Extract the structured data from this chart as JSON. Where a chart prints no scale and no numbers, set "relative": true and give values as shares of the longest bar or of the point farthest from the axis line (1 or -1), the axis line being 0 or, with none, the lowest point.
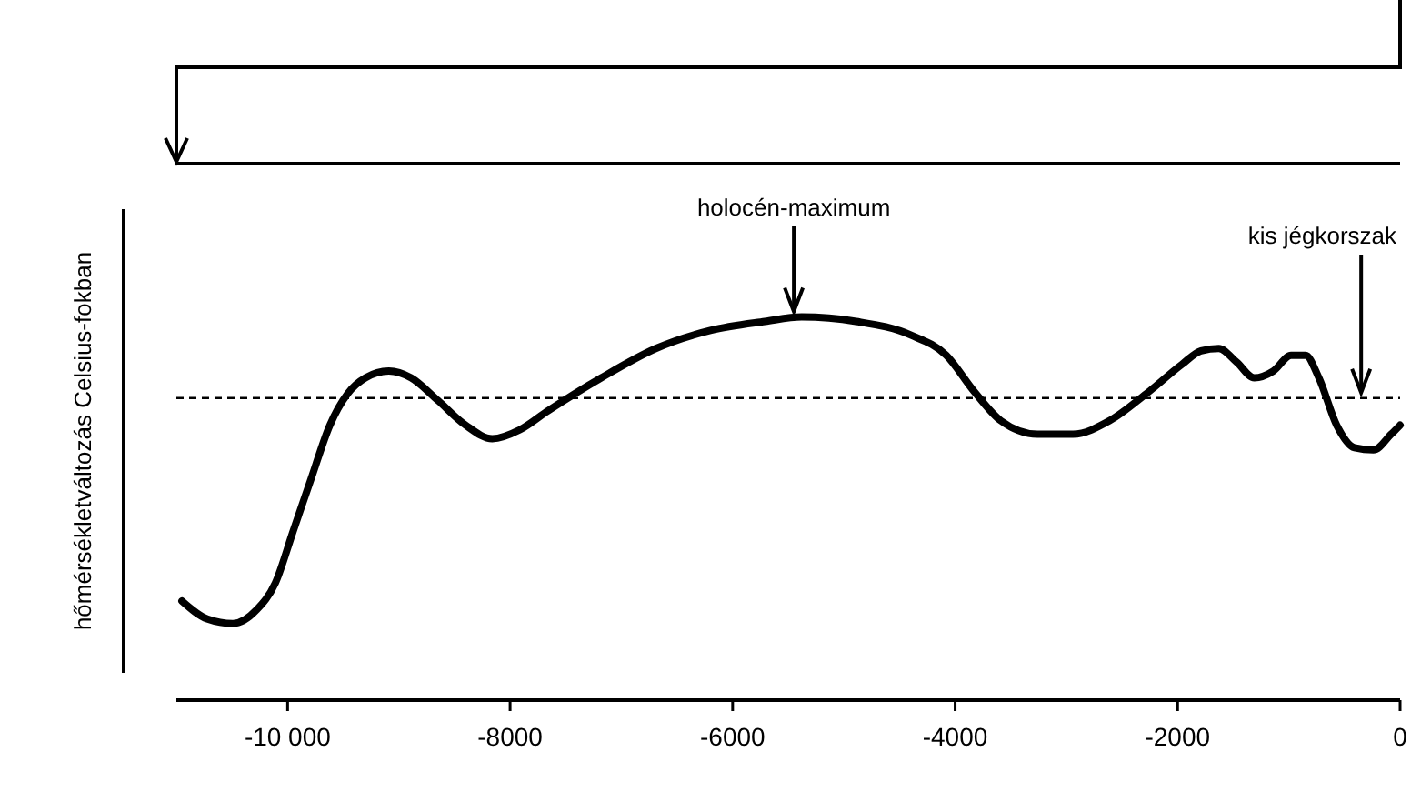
{
  "chart_data": {
    "type": "line",
    "relative": true,
    "ylabel": "hőmérsékletváltozás Celsius-fokban",
    "x": [
      -10950,
      -10720,
      -10490,
      -10280,
      -10110,
      -9950,
      -9790,
      -9620,
      -9460,
      -9300,
      -9090,
      -8890,
      -8650,
      -8400,
      -8160,
      -7910,
      -7670,
      -7180,
      -6690,
      -6200,
      -5710,
      -5380,
      -4890,
      -4400,
      -4080,
      -3830,
      -3590,
      -3260,
      -2940,
      -2610,
      -2280,
      -1960,
      -1790,
      -1630,
      -1470,
      -1310,
      -1140,
      -980,
      -850,
      -730,
      -570,
      -410,
      -240,
      -80,
      0
    ],
    "series": [
      {
        "color": "#000000",
        "values": [
          -0.9,
          -0.98,
          -1,
          -0.94,
          -0.82,
          -0.59,
          -0.36,
          -0.12,
          0.02,
          0.09,
          0.12,
          0.09,
          -0.01,
          -0.12,
          -0.18,
          -0.14,
          -0.06,
          0.09,
          0.22,
          0.3,
          0.34,
          0.36,
          0.34,
          0.28,
          0.19,
          0.03,
          -0.1,
          -0.16,
          -0.16,
          -0.1,
          0.02,
          0.15,
          0.21,
          0.22,
          0.16,
          0.09,
          0.12,
          0.19,
          0.19,
          0.09,
          -0.12,
          -0.22,
          -0.23,
          -0.16,
          -0.12
        ]
      }
    ],
    "xlim": [
      -11000,
      0
    ],
    "xticks": [
      {
        "value": -10000,
        "label": "-10 000"
      },
      -8000,
      -6000,
      -4000,
      -2000,
      0
    ],
    "ref_lines": [
      {
        "axis": "y",
        "value": 0,
        "line_style": "dashed",
        "color": "#000000"
      }
    ],
    "annotations": [
      {
        "text": "holocén-maximum",
        "x": -5450,
        "y": 0.36
      },
      {
        "text": "kis jégkorszak",
        "x": -350,
        "y": 0
      }
    ],
    "grid": false,
    "line_style": "solid",
    "marker": "none"
  }
}
